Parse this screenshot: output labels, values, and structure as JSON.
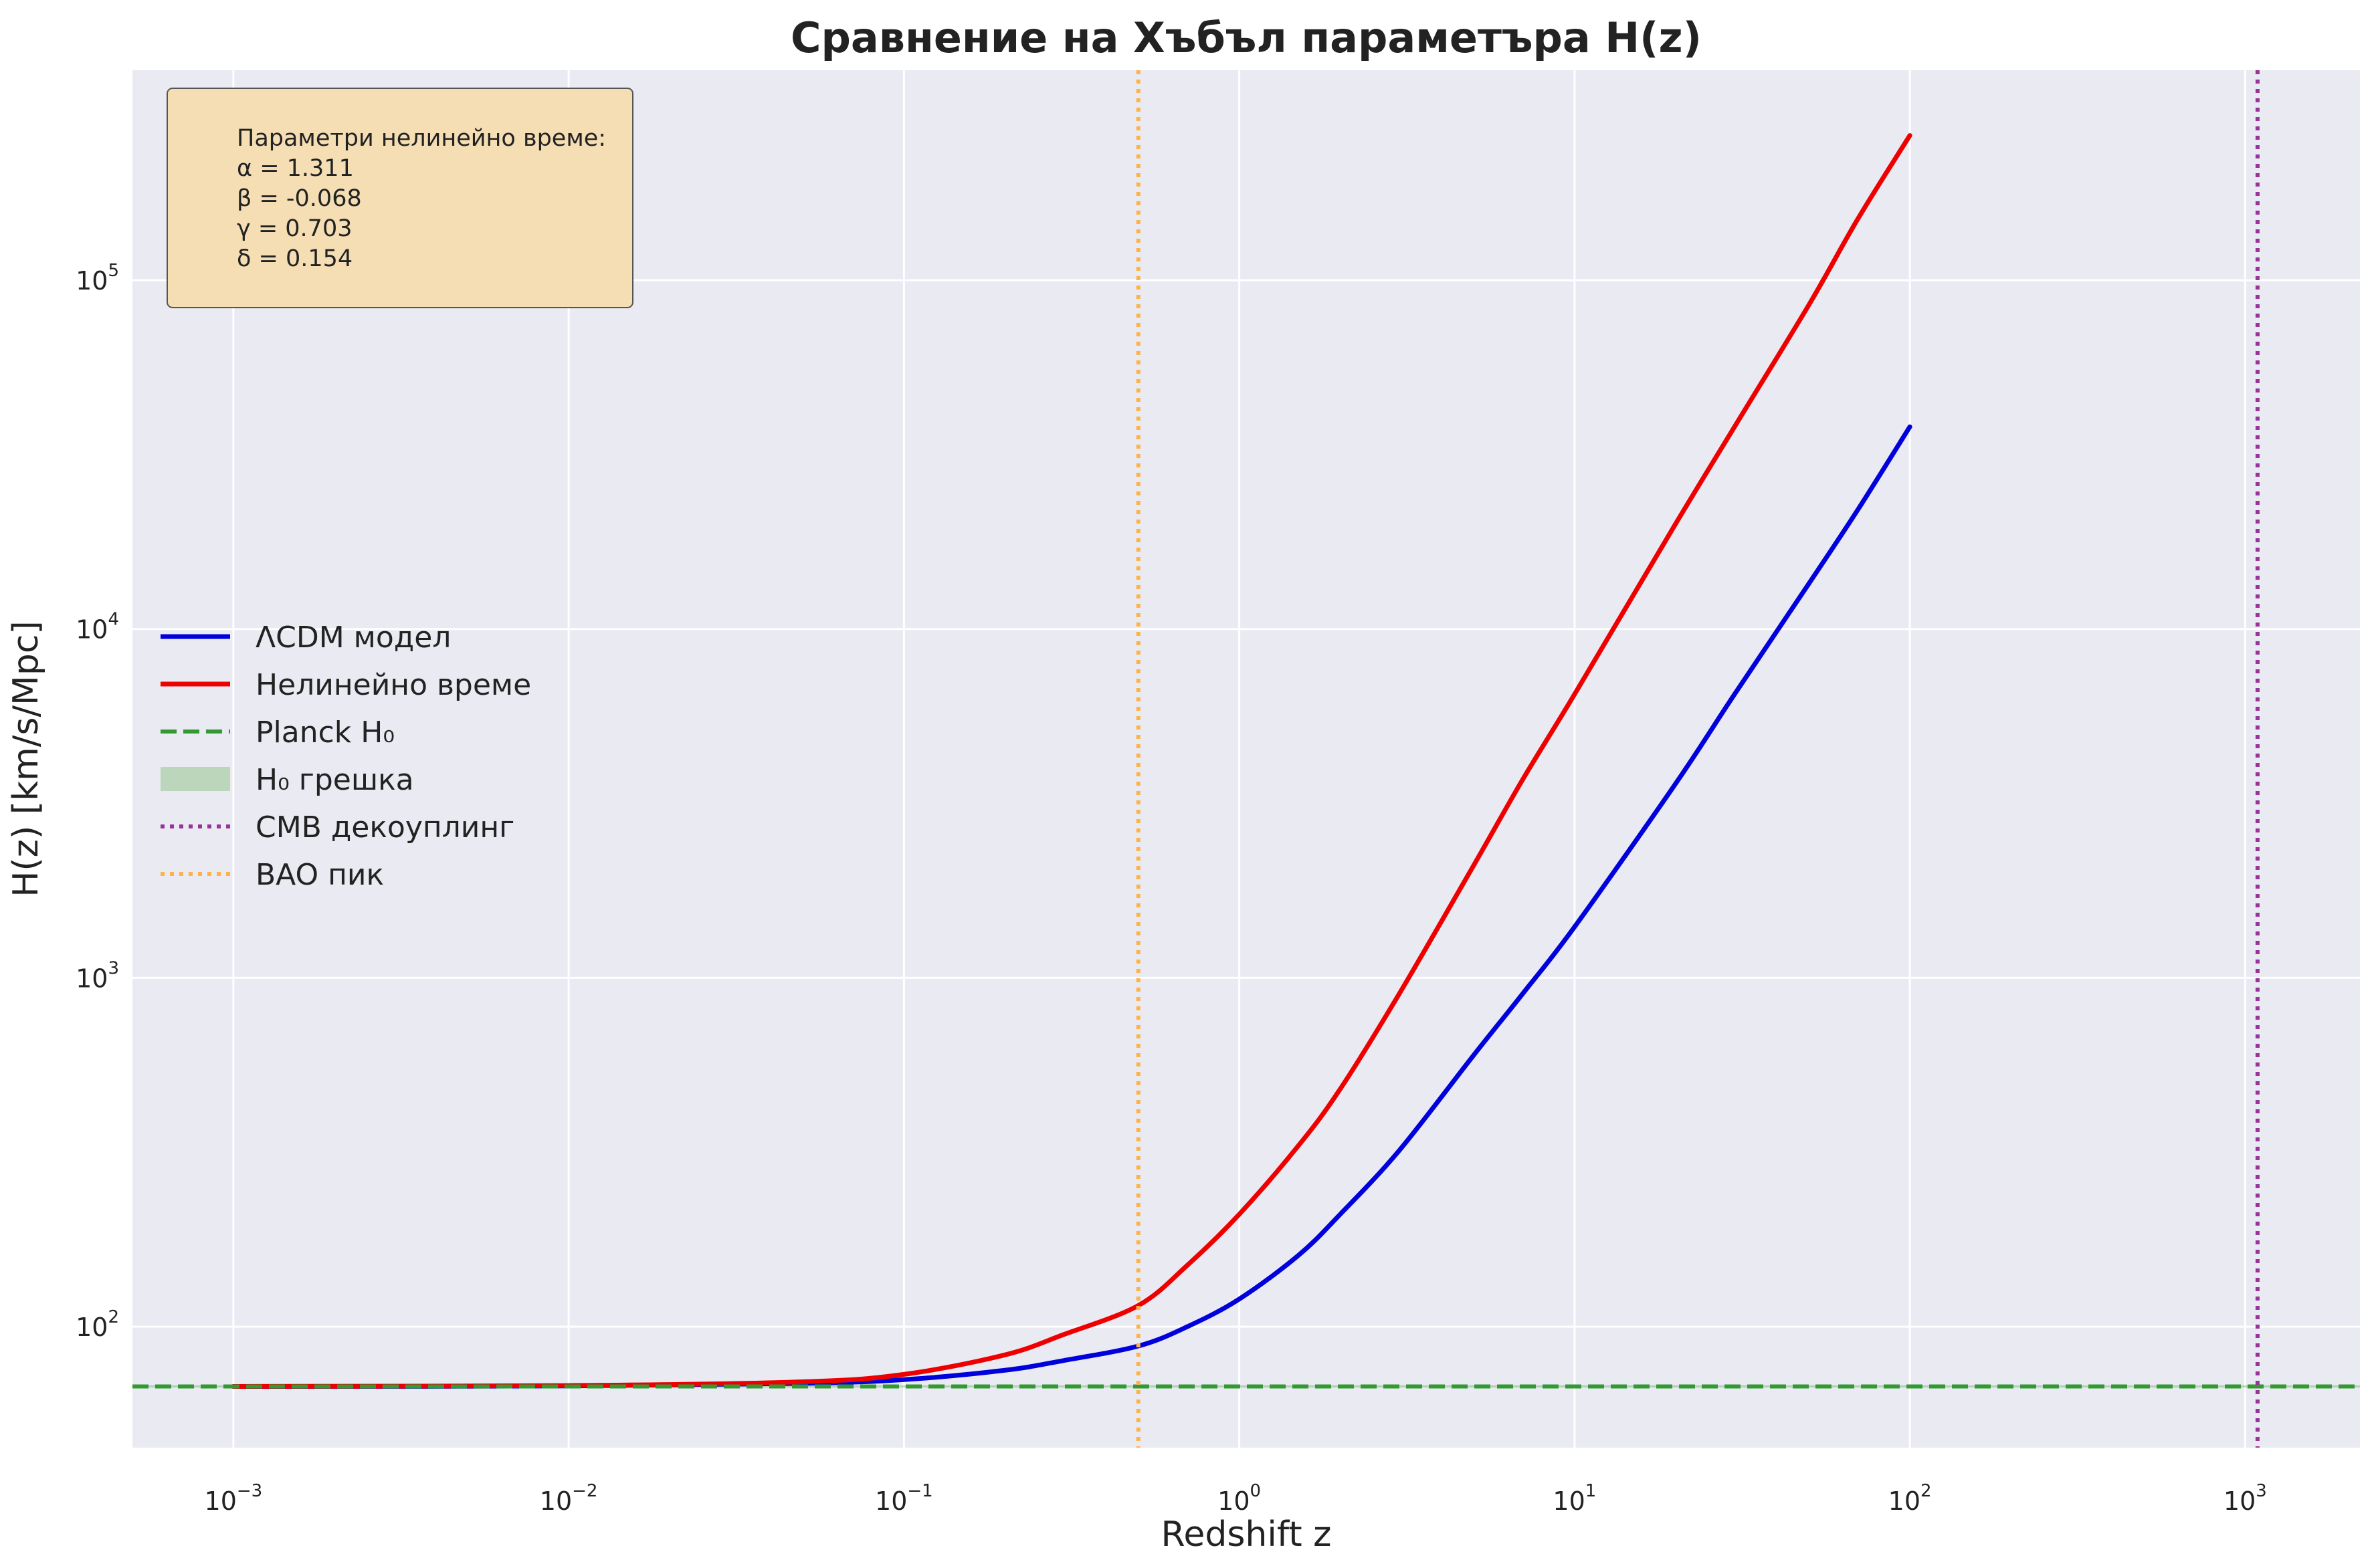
{
  "chart_data": {
    "type": "line",
    "title": "Сравнение на Хъбъл параметъра H(z)",
    "xlabel": "Redshift z",
    "ylabel": "H(z) [km/s/Mpc]",
    "xscale": "log",
    "yscale": "log",
    "xlim": [
      0.0005,
      2200
    ],
    "ylim": [
      45,
      400000
    ],
    "grid": true,
    "legend_position": "center-left",
    "x_ticks": [
      {
        "base": "10",
        "exp": "−3",
        "value": 0.001
      },
      {
        "base": "10",
        "exp": "−2",
        "value": 0.01
      },
      {
        "base": "10",
        "exp": "−1",
        "value": 0.1
      },
      {
        "base": "10",
        "exp": "0",
        "value": 1
      },
      {
        "base": "10",
        "exp": "1",
        "value": 10
      },
      {
        "base": "10",
        "exp": "2",
        "value": 100
      },
      {
        "base": "10",
        "exp": "3",
        "value": 1000
      }
    ],
    "y_ticks": [
      {
        "base": "10",
        "exp": "2",
        "value": 100
      },
      {
        "base": "10",
        "exp": "3",
        "value": 1000
      },
      {
        "base": "10",
        "exp": "4",
        "value": 10000
      },
      {
        "base": "10",
        "exp": "5",
        "value": 100000
      }
    ],
    "series": [
      {
        "name": "ΛCDM модел",
        "color": "#0000dd",
        "style": "solid",
        "x": [
          0.001,
          0.01,
          0.05,
          0.1,
          0.2,
          0.3,
          0.5,
          0.7,
          1,
          1.5,
          2,
          3,
          5,
          7,
          10,
          20,
          30,
          50,
          70,
          100
        ],
        "y": [
          67.4,
          67.6,
          68.8,
          70.5,
          75,
          80,
          88,
          100,
          120,
          160,
          210,
          320,
          600,
          900,
          1400,
          3600,
          6500,
          13500,
          22000,
          38000
        ]
      },
      {
        "name": "Нелинейно време",
        "color": "#ee0000",
        "style": "solid",
        "x": [
          0.001,
          0.01,
          0.05,
          0.1,
          0.2,
          0.3,
          0.5,
          0.7,
          1,
          1.5,
          2,
          3,
          5,
          7,
          10,
          20,
          30,
          50,
          70,
          100
        ],
        "y": [
          67.4,
          67.8,
          69.5,
          73,
          83,
          95,
          115,
          150,
          210,
          330,
          480,
          900,
          2100,
          3700,
          6500,
          20000,
          38000,
          85000,
          150000,
          260000
        ]
      }
    ],
    "reference_lines": [
      {
        "name": "Planck H₀",
        "orientation": "horizontal",
        "value": 67.4,
        "color": "#339933",
        "style": "dashed"
      },
      {
        "name": "CMB декоуплинг",
        "orientation": "vertical",
        "value": 1089,
        "color": "#993399",
        "style": "dotted"
      },
      {
        "name": "BAO пик",
        "orientation": "vertical",
        "value": 0.5,
        "color": "#ffb347",
        "style": "dotted"
      }
    ],
    "bands": [
      {
        "name": "H₀ грешка",
        "orientation": "horizontal",
        "range": [
          66.9,
          67.9
        ],
        "color": "#8fbf8f"
      }
    ],
    "legend": [
      {
        "label": "ΛCDM модел",
        "color": "#0000dd",
        "style": "solid"
      },
      {
        "label": "Нелинейно време",
        "color": "#ee0000",
        "style": "solid"
      },
      {
        "label": "Planck H₀",
        "color": "#339933",
        "style": "dashed"
      },
      {
        "label": "H₀ грешка",
        "color": "#bcd6bc",
        "style": "patch"
      },
      {
        "label": "CMB декоуплинг",
        "color": "#993399",
        "style": "dotted"
      },
      {
        "label": "BAO пик",
        "color": "#ffb347",
        "style": "dotted"
      }
    ],
    "annotation": {
      "lines": [
        "Параметри нелинейно време:",
        "α = 1.311",
        "β = -0.068",
        "γ = 0.703",
        "δ = 0.154"
      ],
      "background": "#f5deb3"
    }
  },
  "colors": {
    "plot_background": "#eaeaf2",
    "grid": "#ffffff"
  }
}
